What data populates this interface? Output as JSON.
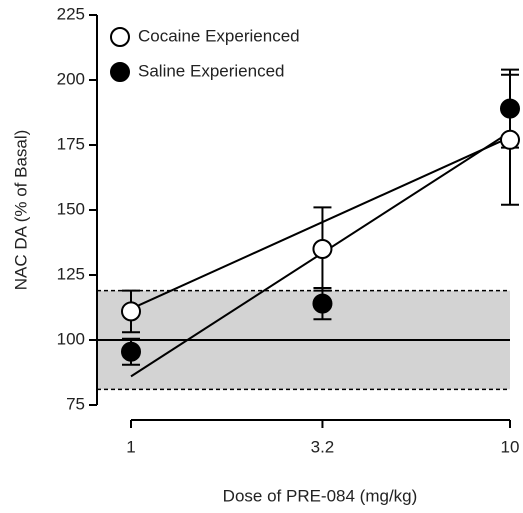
{
  "chart_data": {
    "type": "scatter",
    "x_label": "Dose of PRE-084 (mg/kg)",
    "y_label": "NAC DA (% of Basal)",
    "x": [
      1,
      3.2,
      10
    ],
    "xlog": true,
    "xlim": [
      1,
      10
    ],
    "xticks": [
      1,
      3.2,
      10
    ],
    "ylim": [
      75,
      225
    ],
    "yticks": [
      75,
      100,
      125,
      150,
      175,
      200,
      225
    ],
    "legend": "top-left",
    "series": [
      {
        "name": "Cocaine Experienced",
        "color": "#000000",
        "marker": "open",
        "values": [
          111,
          135,
          177
        ],
        "errors": [
          8,
          16,
          25
        ]
      },
      {
        "name": "Saline Experienced",
        "color": "#000000",
        "marker": "filled",
        "values": [
          95.5,
          114,
          189
        ],
        "errors": [
          5,
          6,
          15
        ]
      }
    ],
    "fits": [
      {
        "x": [
          1,
          10
        ],
        "values": [
          112,
          178
        ]
      },
      {
        "x": [
          1,
          10
        ],
        "values": [
          86,
          180
        ]
      }
    ],
    "band": [
      81,
      119
    ],
    "band_color": "#d3d3d3",
    "reference": 100
  }
}
